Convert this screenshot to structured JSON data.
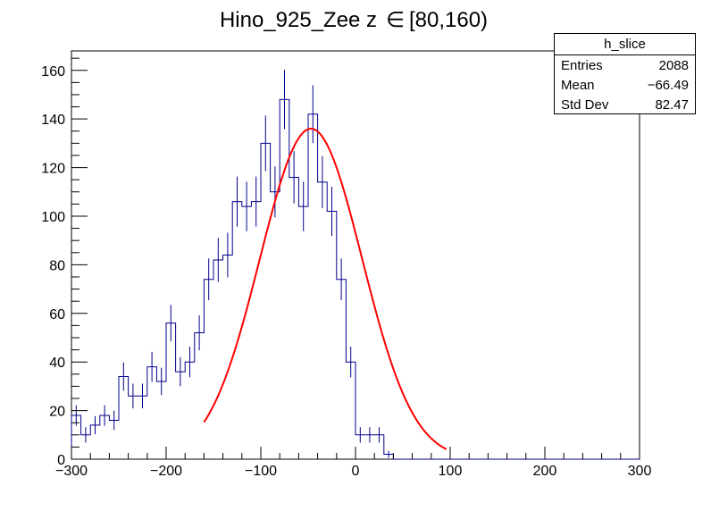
{
  "chart_data": {
    "type": "histogram",
    "title_prefix": "Hino_925_Zee z",
    "title_symbol": "∈",
    "title_range": "[80,160)",
    "xlim": [
      -300,
      300
    ],
    "ylim": [
      0,
      168
    ],
    "x_ticks": [
      -300,
      -200,
      -100,
      0,
      100,
      200,
      300
    ],
    "x_tick_labels": [
      "−300",
      "−200",
      "−100",
      "0",
      "100",
      "200",
      "300"
    ],
    "y_ticks": [
      0,
      20,
      40,
      60,
      80,
      100,
      120,
      140,
      160
    ],
    "y_tick_labels": [
      "0",
      "20",
      "40",
      "60",
      "80",
      "100",
      "120",
      "140",
      "160"
    ],
    "bin_width": 10,
    "bins_x_start": -300,
    "counts": [
      18,
      10,
      14,
      18,
      16,
      34,
      26,
      26,
      38,
      32,
      56,
      36,
      40,
      52,
      74,
      82,
      84,
      106,
      104,
      106,
      130,
      110,
      148,
      116,
      104,
      142,
      114,
      102,
      74,
      40,
      10,
      10,
      10,
      2,
      0,
      0,
      0,
      0,
      0,
      0,
      0,
      0,
      0,
      0,
      0,
      0,
      0,
      0,
      0,
      0,
      0,
      0,
      0,
      0,
      0,
      0,
      0,
      0,
      0,
      0
    ],
    "fit": {
      "type": "gaussian",
      "amplitude": 136,
      "mean": -47,
      "sigma": 54,
      "x_range": [
        -160,
        96
      ]
    },
    "colors": {
      "histogram": "#00008b",
      "fit": "#ff0000",
      "axis": "#000000"
    }
  },
  "stats": {
    "name": "h_slice",
    "rows": [
      {
        "label": "Entries",
        "value": "2088"
      },
      {
        "label": "Mean",
        "value": "−66.49"
      },
      {
        "label": "Std Dev",
        "value": "82.47"
      }
    ]
  }
}
